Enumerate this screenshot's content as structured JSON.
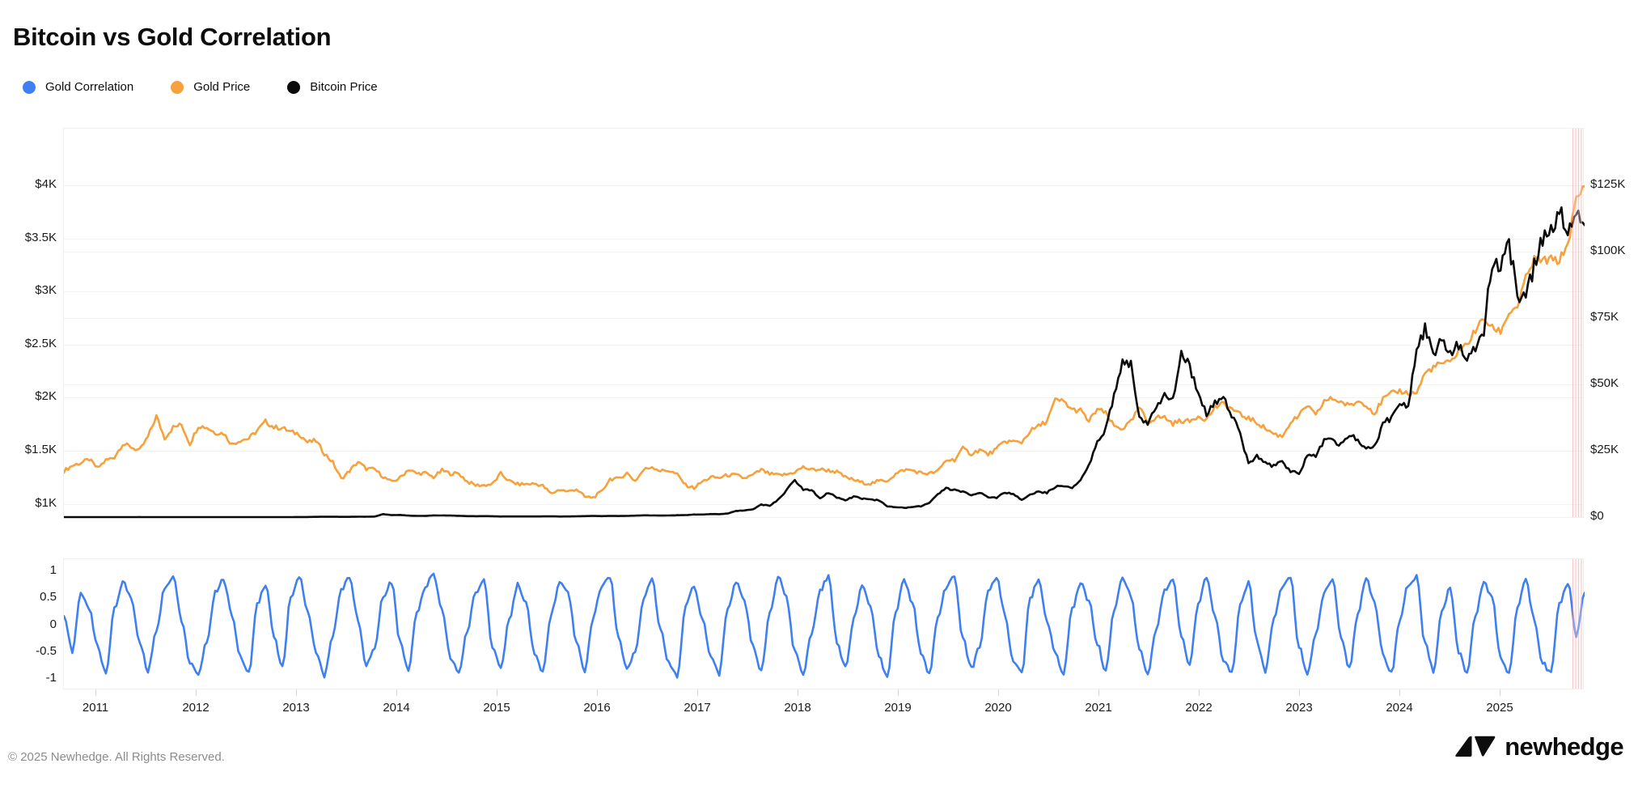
{
  "page": {
    "title": "Bitcoin vs Gold Correlation",
    "footer_copyright": "© 2025 Newhedge. All Rights Reserved.",
    "brand": "newhedge"
  },
  "legend": {
    "items": [
      {
        "label": "Gold Correlation",
        "color": "#3e7ff1"
      },
      {
        "label": "Gold Price",
        "color": "#f6a13c"
      },
      {
        "label": "Bitcoin Price",
        "color": "#0b0b0b"
      }
    ]
  },
  "chart_data": {
    "type": "line",
    "title": "Bitcoin vs Gold Correlation",
    "x_axis": {
      "start": "2010-09",
      "interval": "monthly",
      "tick_labels": [
        "2011",
        "2012",
        "2013",
        "2014",
        "2015",
        "2016",
        "2017",
        "2018",
        "2019",
        "2020",
        "2021",
        "2022",
        "2023",
        "2024",
        "2025"
      ],
      "grid": false
    },
    "highlight_band": {
      "position": "right-edge",
      "color": "#ef7373"
    },
    "panels": [
      {
        "id": "price",
        "left_axis": {
          "series": "Gold Price",
          "tick_labels": [
            "$1K",
            "$1.5K",
            "$2K",
            "$2.5K",
            "$3K",
            "$3.5K",
            "$4K"
          ],
          "tick_values": [
            1000,
            1500,
            2000,
            2500,
            3000,
            3500,
            4000
          ],
          "range": [
            865,
            4545
          ],
          "grid": true
        },
        "right_axis": {
          "series": "Bitcoin Price",
          "tick_labels": [
            "$0",
            "$25K",
            "$50K",
            "$75K",
            "$100K",
            "$125K"
          ],
          "tick_values": [
            0,
            25000,
            50000,
            75000,
            100000,
            125000
          ],
          "range": [
            0,
            146000
          ],
          "grid": true
        },
        "series": [
          {
            "name": "Gold Price",
            "axis": "left",
            "color": "#f6a13c",
            "values": [
              1310,
              1360,
              1385,
              1420,
              1335,
              1410,
              1440,
              1565,
              1535,
              1500,
              1630,
              1825,
              1620,
              1720,
              1745,
              1565,
              1735,
              1720,
              1670,
              1665,
              1560,
              1600,
              1615,
              1690,
              1775,
              1720,
              1715,
              1675,
              1660,
              1580,
              1595,
              1475,
              1390,
              1235,
              1310,
              1395,
              1330,
              1325,
              1255,
              1205,
              1245,
              1325,
              1285,
              1290,
              1250,
              1315,
              1285,
              1285,
              1210,
              1175,
              1175,
              1185,
              1285,
              1215,
              1185,
              1185,
              1190,
              1170,
              1095,
              1135,
              1115,
              1140,
              1065,
              1060,
              1115,
              1235,
              1235,
              1290,
              1215,
              1320,
              1350,
              1310,
              1315,
              1275,
              1175,
              1150,
              1210,
              1250,
              1245,
              1270,
              1270,
              1240,
              1270,
              1320,
              1280,
              1270,
              1275,
              1300,
              1345,
              1320,
              1325,
              1315,
              1300,
              1250,
              1225,
              1200,
              1190,
              1215,
              1220,
              1280,
              1320,
              1315,
              1290,
              1285,
              1305,
              1410,
              1415,
              1520,
              1470,
              1510,
              1465,
              1515,
              1590,
              1585,
              1580,
              1685,
              1730,
              1780,
              1975,
              1965,
              1885,
              1880,
              1775,
              1895,
              1850,
              1730,
              1710,
              1770,
              1905,
              1770,
              1815,
              1815,
              1755,
              1785,
              1775,
              1830,
              1795,
              1910,
              1940,
              1895,
              1840,
              1805,
              1765,
              1710,
              1660,
              1635,
              1770,
              1825,
              1930,
              1825,
              1970,
              1990,
              1960,
              1920,
              1965,
              1940,
              1850,
              1985,
              2035,
              2065,
              2040,
              2045,
              2230,
              2285,
              2325,
              2325,
              2445,
              2500,
              2635,
              2745,
              2655,
              2625,
              2800,
              2860,
              3120,
              3300,
              3290,
              3300,
              3290,
              3450,
              3860,
              3990
            ]
          },
          {
            "name": "Bitcoin Price",
            "axis": "right",
            "color": "#0b0b0b",
            "values": [
              0.06,
              0.19,
              0.25,
              0.3,
              0.45,
              0.9,
              0.85,
              3,
              8.7,
              16,
              13,
              8,
              5,
              3.2,
              3,
              4.7,
              5.3,
              4.9,
              4.9,
              5,
              5.1,
              6.7,
              9.4,
              10.2,
              12.4,
              11.2,
              12.6,
              13.5,
              20,
              33,
              93,
              139,
              128,
              97,
              106,
              141,
              141,
              204,
              1130,
              757,
              815,
              550,
              458,
              446,
              627,
              635,
              589,
              478,
              387,
              338,
              378,
              320,
              217,
              254,
              244,
              236,
              230,
              263,
              284,
              230,
              236,
              314,
              377,
              430,
              368,
              437,
              416,
              448,
              531,
              673,
              624,
              575,
              610,
              700,
              745,
              963,
              970,
              1180,
              1080,
              1350,
              2300,
              2480,
              2875,
              4700,
              4340,
              6440,
              9950,
              14100,
              10200,
              10300,
              6930,
              9240,
              7500,
              6400,
              7750,
              7030,
              6625,
              6300,
              4040,
              3740,
              3460,
              3850,
              4100,
              5320,
              8560,
              10800,
              10100,
              9600,
              8300,
              9150,
              7550,
              7200,
              9350,
              8600,
              6440,
              8620,
              9450,
              9140,
              11350,
              11650,
              10780,
              13800,
              19700,
              29000,
              33100,
              45200,
              58800,
              57750,
              37300,
              35000,
              41500,
              47150,
              43800,
              61300,
              57000,
              46200,
              38500,
              43200,
              45500,
              37650,
              31800,
              19950,
              23300,
              20050,
              19400,
              20500,
              17150,
              16550,
              23100,
              23150,
              28450,
              29250,
              27200,
              30450,
              29250,
              26000,
              26950,
              34650,
              37700,
              42250,
              42550,
              61150,
              71300,
              60650,
              67500,
              62700,
              64600,
              59000,
              63300,
              70200,
              96400,
              93400,
              102400,
              84350,
              82550,
              94200,
              104600,
              107100,
              115750,
              108200,
              114000,
              110000
            ]
          }
        ]
      },
      {
        "id": "correlation",
        "left_axis": {
          "series": "Gold Correlation",
          "tick_labels": [
            "1",
            "0.5",
            "0",
            "-0.5",
            "-1"
          ],
          "tick_values": [
            1,
            0.5,
            0,
            -0.5,
            -1
          ],
          "range": [
            -1.1,
            1.1
          ],
          "grid": false
        },
        "series": [
          {
            "name": "Gold Correlation",
            "axis": "left",
            "color": "#3e7ff1",
            "values": [
              0.2,
              -0.5,
              0.6,
              0.3,
              -0.4,
              -0.9,
              0.3,
              0.8,
              0.5,
              -0.3,
              -0.85,
              -0.1,
              0.7,
              0.9,
              0.1,
              -0.7,
              -0.95,
              -0.3,
              0.6,
              0.85,
              0.2,
              -0.6,
              -0.9,
              0.4,
              0.75,
              -0.2,
              -0.8,
              0.5,
              0.9,
              0.3,
              -0.5,
              -0.95,
              -0.2,
              0.65,
              0.9,
              0.1,
              -0.75,
              -0.4,
              0.55,
              0.8,
              -0.3,
              -0.85,
              0.2,
              0.7,
              0.95,
              0.3,
              -0.6,
              -0.9,
              -0.1,
              0.6,
              0.85,
              -0.4,
              -0.8,
              0.1,
              0.75,
              0.4,
              -0.55,
              -0.9,
              0.2,
              0.8,
              0.6,
              -0.3,
              -0.85,
              0.15,
              0.7,
              0.9,
              -0.2,
              -0.8,
              -0.5,
              0.5,
              0.85,
              -0.1,
              -0.7,
              -0.95,
              0.35,
              0.75,
              0.1,
              -0.6,
              -0.9,
              0.3,
              0.8,
              0.45,
              -0.4,
              -0.85,
              0.2,
              0.9,
              0.5,
              -0.5,
              -0.9,
              -0.15,
              0.65,
              0.9,
              -0.3,
              -0.8,
              0.1,
              0.75,
              0.35,
              -0.6,
              -0.95,
              0.25,
              0.85,
              0.4,
              -0.5,
              -0.9,
              0.15,
              0.7,
              0.9,
              -0.25,
              -0.8,
              -0.4,
              0.6,
              0.9,
              0.2,
              -0.7,
              -0.9,
              0.5,
              0.85,
              0.1,
              -0.55,
              -0.9,
              0.3,
              0.8,
              0.45,
              -0.35,
              -0.85,
              0.25,
              0.9,
              0.55,
              -0.45,
              -0.9,
              -0.1,
              0.65,
              0.85,
              -0.2,
              -0.75,
              0.4,
              0.9,
              0.15,
              -0.65,
              -0.9,
              0.35,
              0.8,
              -0.3,
              -0.85,
              0.1,
              0.7,
              0.9,
              -0.4,
              -0.9,
              -0.2,
              0.6,
              0.85,
              -0.25,
              -0.8,
              0.2,
              0.9,
              0.4,
              -0.55,
              -0.9,
              0.1,
              0.75,
              0.9,
              -0.35,
              -0.85,
              0.25,
              0.7,
              -0.5,
              -0.9,
              0.15,
              0.8,
              0.5,
              -0.6,
              -0.9,
              0.3,
              0.85,
              0.1,
              -0.7,
              -0.9,
              0.4,
              0.8,
              -0.2,
              0.6
            ]
          }
        ]
      }
    ]
  }
}
